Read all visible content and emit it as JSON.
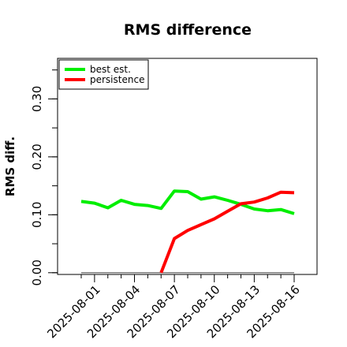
{
  "chart_data": {
    "type": "line",
    "title": "RMS difference",
    "xlabel": "",
    "ylabel": "RMS diff.",
    "x": [
      "2025-07-31",
      "2025-08-01",
      "2025-08-02",
      "2025-08-03",
      "2025-08-04",
      "2025-08-05",
      "2025-08-06",
      "2025-08-07",
      "2025-08-08",
      "2025-08-09",
      "2025-08-10",
      "2025-08-11",
      "2025-08-12",
      "2025-08-13",
      "2025-08-14",
      "2025-08-15",
      "2025-08-16"
    ],
    "x_ticks": [
      "2025-08-01",
      "2025-08-04",
      "2025-08-07",
      "2025-08-10",
      "2025-08-13",
      "2025-08-16"
    ],
    "y_ticks": [
      "0.00",
      "0.10",
      "0.20",
      "0.30"
    ],
    "y_tick_values": [
      0.0,
      0.1,
      0.2,
      0.3
    ],
    "ylim": [
      -0.003,
      0.37
    ],
    "grid": false,
    "legend_position": "top-left",
    "series": [
      {
        "name": "best est.",
        "color": "#00ee00",
        "values": [
          0.123,
          0.12,
          0.112,
          0.125,
          0.118,
          0.116,
          0.111,
          0.141,
          0.14,
          0.127,
          0.131,
          0.125,
          0.118,
          0.11,
          0.107,
          0.109,
          0.102
        ]
      },
      {
        "name": "persistence",
        "color": "#ff0000",
        "values": [
          null,
          null,
          null,
          null,
          null,
          null,
          0.0,
          0.059,
          0.073,
          0.083,
          0.093,
          0.106,
          0.119,
          0.122,
          0.129,
          0.139,
          0.138
        ]
      },
      {
        "name": "",
        "color": "#808080",
        "values": [
          0,
          0,
          0,
          0,
          0,
          0,
          0,
          0,
          0,
          0,
          0,
          0,
          0,
          0,
          0,
          0,
          0
        ]
      }
    ]
  }
}
